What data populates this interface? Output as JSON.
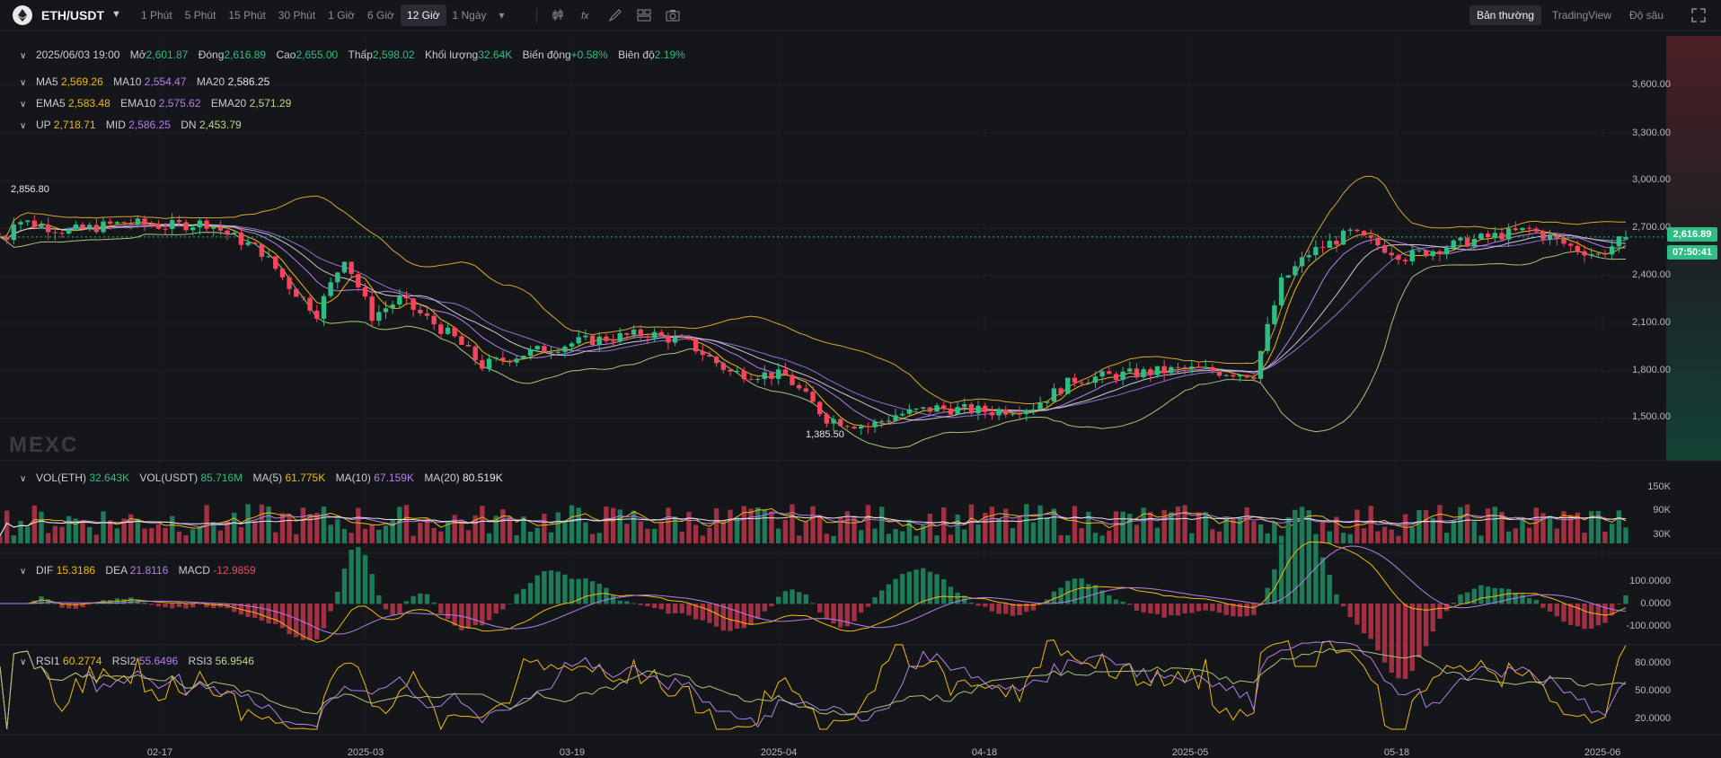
{
  "toolbar": {
    "pair": "ETH/USDT",
    "intervals": [
      "1 Phút",
      "5 Phút",
      "15 Phút",
      "30 Phút",
      "1 Giờ",
      "6 Giờ",
      "12 Giờ",
      "1 Ngày"
    ],
    "active_interval": "12 Giờ",
    "view_options": [
      "Bản thường",
      "TradingView",
      "Độ sâu"
    ],
    "active_view": "Bản thường",
    "icons": [
      "candle-type-icon",
      "indicator-icon",
      "draw-icon",
      "layout-icon",
      "camera-icon",
      "fullscreen-icon"
    ]
  },
  "ohlc": {
    "date": "2025/06/03 19:00",
    "open_label": "Mở",
    "open": "2,601.87",
    "close_label": "Đóng",
    "close": "2,616.89",
    "high_label": "Cao",
    "high": "2,655.00",
    "low_label": "Thấp",
    "low": "2,598.02",
    "volume_label": "Khối lượng",
    "volume": "32.64K",
    "change_label": "Biến động",
    "change": "+0.58%",
    "amplitude_label": "Biên độ",
    "amplitude": "2.19%"
  },
  "ma": {
    "ma5_label": "MA5",
    "ma5": "2,569.26",
    "ma10_label": "MA10",
    "ma10": "2,554.47",
    "ma20_label": "MA20",
    "ma20": "2,586.25"
  },
  "ema": {
    "ema5_label": "EMA5",
    "ema5": "2,583.48",
    "ema10_label": "EMA10",
    "ema10": "2,575.62",
    "ema20_label": "EMA20",
    "ema20": "2,571.29"
  },
  "boll": {
    "up_label": "UP",
    "up": "2,718.71",
    "mid_label": "MID",
    "mid": "2,586.25",
    "dn_label": "DN",
    "dn": "2,453.79"
  },
  "price_axis": [
    "3,600.00",
    "3,300.00",
    "3,000.00",
    "2,700.00",
    "2,400.00",
    "2,100.00",
    "1,800.00",
    "1,500.00"
  ],
  "current_price": "2,616.89",
  "countdown": "07:50:41",
  "high_marker": "2,856.80",
  "low_marker": "1,385.50",
  "watermark": "MEXC",
  "volume": {
    "label": "VOL(ETH)",
    "eth": "32.643K",
    "usdt_label": "VOL(USDT)",
    "usdt": "85.716M",
    "ma5_label": "MA(5)",
    "ma5": "61.775K",
    "ma10_label": "MA(10)",
    "ma10": "67.159K",
    "ma20_label": "MA(20)",
    "ma20": "80.519K",
    "axis": [
      "150K",
      "90K",
      "30K"
    ]
  },
  "macd": {
    "dif_label": "DIF",
    "dif": "15.3186",
    "dea_label": "DEA",
    "dea": "21.8116",
    "macd_label": "MACD",
    "macd": "-12.9859",
    "axis": [
      "100.0000",
      "0.0000",
      "-100.0000"
    ]
  },
  "rsi": {
    "rsi1_label": "RSI1",
    "rsi1": "60.2774",
    "rsi2_label": "RSI2",
    "rsi2": "55.6496",
    "rsi3_label": "RSI3",
    "rsi3": "56.9546",
    "axis": [
      "80.0000",
      "50.0000",
      "20.0000"
    ]
  },
  "time_axis": [
    "02-17",
    "2025-03",
    "03-19",
    "2025-04",
    "04-18",
    "2025-05",
    "05-18",
    "2025-06"
  ],
  "colors": {
    "up": "#2ebd85",
    "down": "#f6465d",
    "bg": "#15161a"
  },
  "chart_data": {
    "type": "candlestick",
    "interval": "12h",
    "x_range": [
      "2025-02-05",
      "2025-06-03"
    ],
    "ylim": [
      1300,
      3800
    ],
    "close_path": [
      [
        "2025-02-06",
        2720
      ],
      [
        "2025-02-10",
        2650
      ],
      [
        "2025-02-14",
        2700
      ],
      [
        "2025-02-17",
        2680
      ],
      [
        "2025-02-20",
        2700
      ],
      [
        "2025-02-24",
        2530
      ],
      [
        "2025-02-26",
        2330
      ],
      [
        "2025-02-28",
        2170
      ],
      [
        "2025-03-02",
        2500
      ],
      [
        "2025-03-04",
        2150
      ],
      [
        "2025-03-06",
        2250
      ],
      [
        "2025-03-10",
        2020
      ],
      [
        "2025-03-12",
        1860
      ],
      [
        "2025-03-15",
        1930
      ],
      [
        "2025-03-19",
        2000
      ],
      [
        "2025-03-24",
        2050
      ],
      [
        "2025-03-27",
        1990
      ],
      [
        "2025-03-30",
        1820
      ],
      [
        "2025-04-03",
        1800
      ],
      [
        "2025-04-06",
        1550
      ],
      [
        "2025-04-09",
        1500
      ],
      [
        "2025-04-11",
        1570
      ],
      [
        "2025-04-14",
        1610
      ],
      [
        "2025-04-18",
        1590
      ],
      [
        "2025-04-21",
        1620
      ],
      [
        "2025-04-24",
        1780
      ],
      [
        "2025-04-28",
        1810
      ],
      [
        "2025-05-02",
        1840
      ],
      [
        "2025-05-07",
        1810
      ],
      [
        "2025-05-09",
        2350
      ],
      [
        "2025-05-11",
        2520
      ],
      [
        "2025-05-14",
        2640
      ],
      [
        "2025-05-18",
        2500
      ],
      [
        "2025-05-23",
        2600
      ],
      [
        "2025-05-27",
        2660
      ],
      [
        "2025-05-30",
        2560
      ],
      [
        "2025-06-01",
        2510
      ],
      [
        "2025-06-03",
        2617
      ]
    ]
  }
}
